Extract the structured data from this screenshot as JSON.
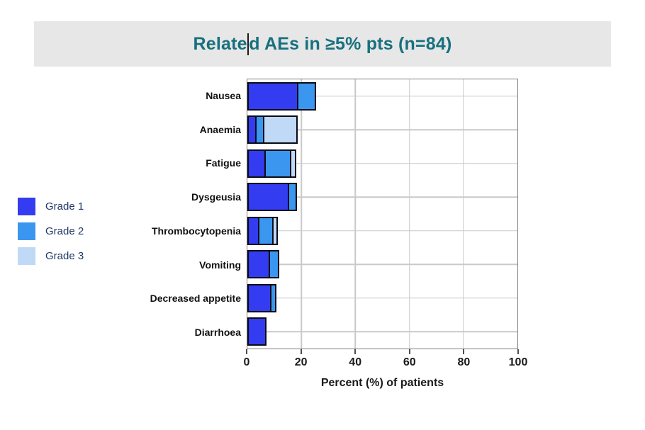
{
  "title": {
    "full": "Related AEs in ≥5% pts (n=84)",
    "before_caret": "Relate",
    "after_caret": "d AEs in ≥5% pts (n=84)"
  },
  "colors": {
    "banner_bg": "#e7e7e7",
    "title_text": "#17707e",
    "legend_text": "#203864",
    "bar_outline": "#0b0b14",
    "gridline": "#c9c9c9",
    "plot_border": "#7f7f7f"
  },
  "legend": {
    "items": [
      {
        "label": "Grade 1",
        "color": "#333cf0"
      },
      {
        "label": "Grade 2",
        "color": "#3b96f0"
      },
      {
        "label": "Grade 3",
        "color": "#bfd9f7"
      }
    ]
  },
  "chart_data": {
    "type": "bar",
    "orientation": "horizontal",
    "stacked": true,
    "title": "Related AEs in ≥5% pts (n=84)",
    "categories": [
      "Nausea",
      "Anaemia",
      "Fatigue",
      "Dysgeusia",
      "Thrombocytopenia",
      "Vomiting",
      "Decreased appetite",
      "Diarrhoea"
    ],
    "series": [
      {
        "name": "Grade 1",
        "color": "#333cf0",
        "values": [
          19,
          3.5,
          7,
          15.5,
          4.5,
          8.5,
          9,
          7
        ]
      },
      {
        "name": "Grade 2",
        "color": "#3b96f0",
        "values": [
          7,
          3.5,
          10,
          3.5,
          6,
          4,
          2.5,
          0
        ]
      },
      {
        "name": "Grade 3",
        "color": "#bfd9f7",
        "values": [
          0,
          13,
          2.5,
          0,
          2,
          0,
          0,
          0
        ]
      }
    ],
    "totals": [
      26,
      20,
      19.5,
      19,
      12.5,
      12.5,
      11.5,
      7
    ],
    "xlabel": "Percent (%) of patients",
    "x_ticks": [
      0,
      20,
      40,
      60,
      80,
      100
    ],
    "xlim": [
      0,
      100
    ],
    "grid": true,
    "legend_position": "left"
  }
}
